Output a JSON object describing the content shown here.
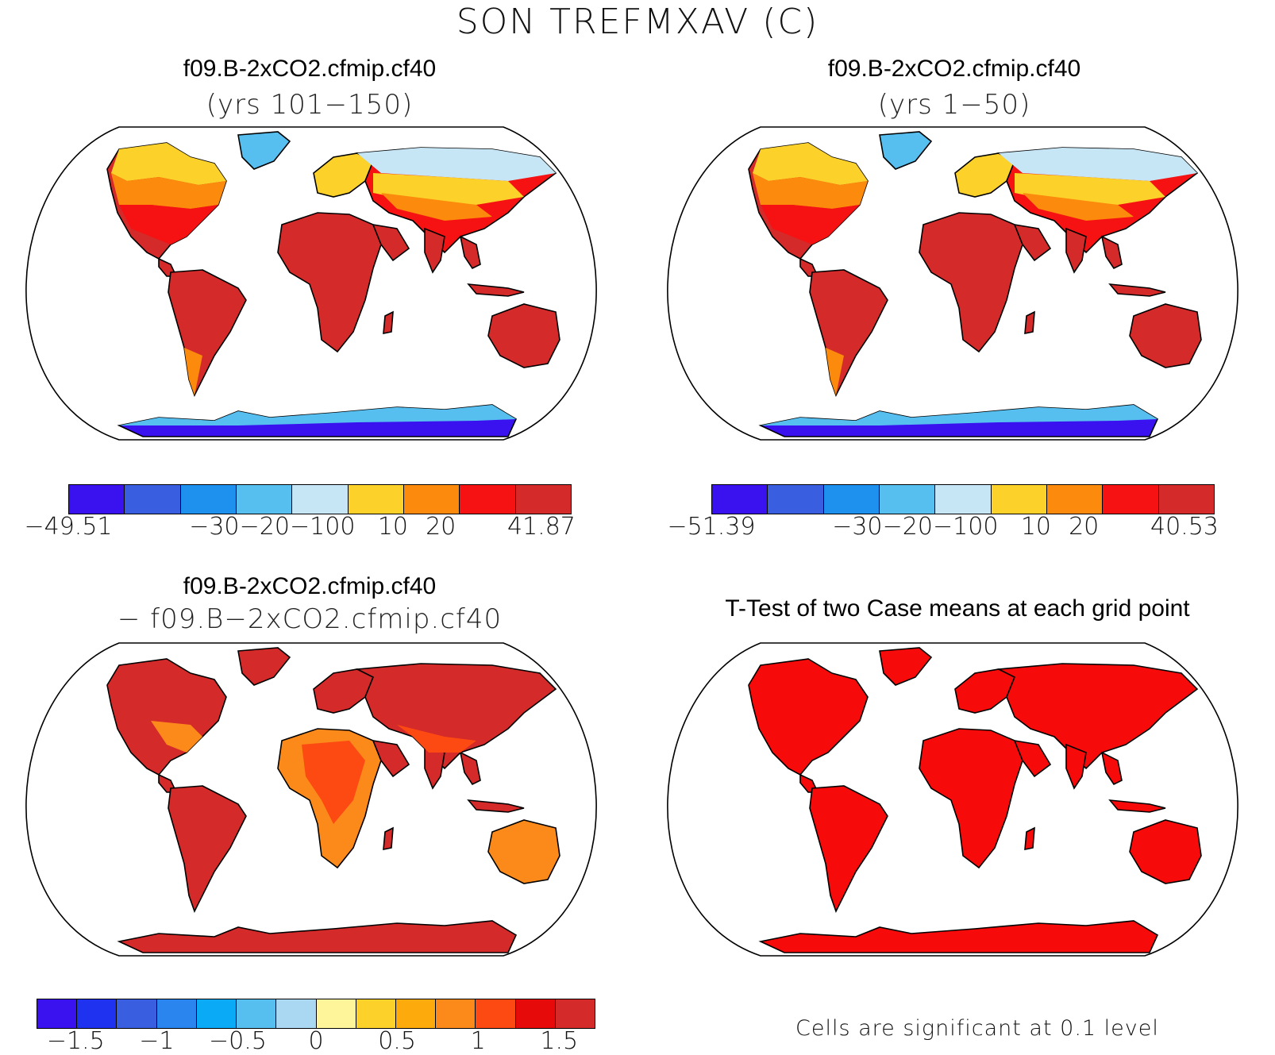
{
  "title": "SON TREFMXAV (C)",
  "panels": {
    "top_left": {
      "title": "f09.B-2xCO2.cfmip.cf40",
      "subtitle": "(yrs 101−150)"
    },
    "top_right": {
      "title": "f09.B-2xCO2.cfmip.cf40",
      "subtitle": "(yrs 1−50)"
    },
    "bottom_left": {
      "title": "f09.B-2xCO2.cfmip.cf40",
      "subtitle": "− f09.B−2xCO2.cfmip.cf40"
    },
    "bottom_right": {
      "title": "T-Test of two Case means at each grid point",
      "note": "Cells are significant at 0.1 level"
    }
  },
  "colorbars": {
    "top_left": {
      "colors": [
        "#3a12f0",
        "#3a5ee0",
        "#1e90ee",
        "#56bff0",
        "#c6e6f6",
        "#fcd22a",
        "#fc8a0c",
        "#f61212",
        "#d42a2a"
      ],
      "ticks": [
        "−49.51",
        "−30",
        "−20",
        "−10",
        "0",
        "10",
        "20",
        "41.87"
      ]
    },
    "top_right": {
      "colors": [
        "#3a12f0",
        "#3a5ee0",
        "#1e90ee",
        "#56bff0",
        "#c6e6f6",
        "#fcd22a",
        "#fc8a0c",
        "#f61212",
        "#d42a2a"
      ],
      "ticks": [
        "−51.39",
        "−30",
        "−20",
        "−10",
        "0",
        "10",
        "20",
        "40.53"
      ]
    },
    "bottom_left": {
      "colors": [
        "#3a12f0",
        "#1e32f0",
        "#3a5ee0",
        "#2a86ee",
        "#0aaaf6",
        "#56bff0",
        "#aad8f2",
        "#fef59a",
        "#fcd22a",
        "#fcaa0c",
        "#fc8a1a",
        "#fc4a12",
        "#e60a0a",
        "#d42a2a"
      ],
      "ticks": [
        "−1.5",
        "−1",
        "−0.5",
        "0",
        "0.5",
        "1",
        "1.5"
      ]
    }
  },
  "map_colors": {
    "ocean": "#ffffff",
    "warm_land": "#d42a2a",
    "hot_land": "#f61212",
    "mild_land": "#fc8a0c",
    "cool_land": "#fcd22a",
    "cold_land": "#c6e6f6",
    "ice_sheet": "#3a12f0",
    "greenland": "#56bff0",
    "diff_land": "#d42a2a",
    "diff_mid": "#fc4a12",
    "diff_low": "#fc8a1a",
    "ttest_land": "#f60a0a"
  }
}
